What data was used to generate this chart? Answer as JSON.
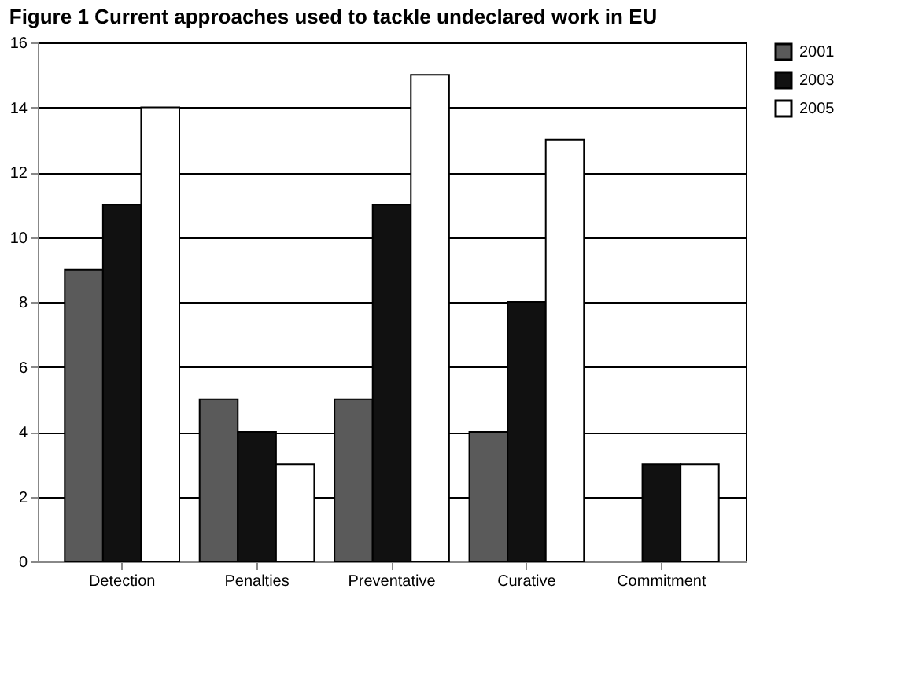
{
  "chart_data": {
    "type": "bar",
    "title": "Figure 1 Current approaches used to tackle undeclared work in EU",
    "categories": [
      "Detection",
      "Penalties",
      "Preventative",
      "Curative",
      "Commitment"
    ],
    "series": [
      {
        "name": "2001",
        "color": "#5a5a5a",
        "values": [
          9,
          5,
          5,
          4,
          0
        ]
      },
      {
        "name": "2003",
        "color": "#111111",
        "values": [
          11,
          4,
          11,
          8,
          3
        ]
      },
      {
        "name": "2005",
        "color": "#ffffff",
        "values": [
          14,
          3,
          15,
          13,
          3
        ]
      }
    ],
    "ylim": [
      0,
      16
    ],
    "yticks": [
      0,
      2,
      4,
      6,
      8,
      10,
      12,
      14,
      16
    ],
    "grid": "y",
    "legend": "right"
  }
}
